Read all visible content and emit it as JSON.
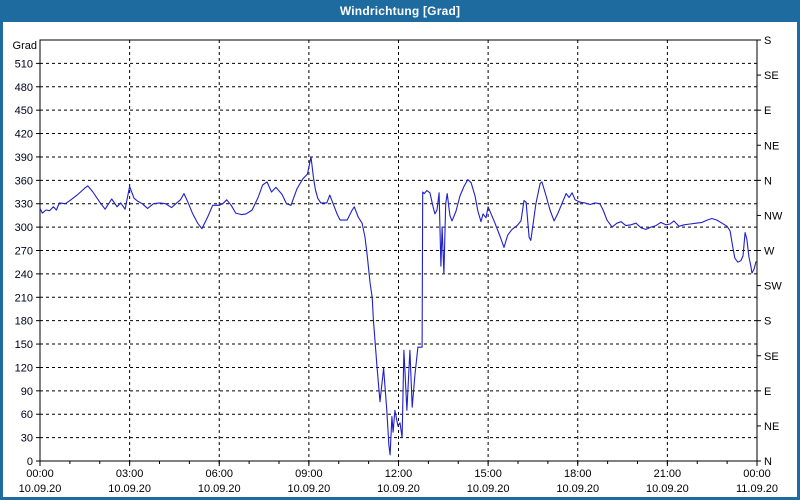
{
  "window": {
    "title": "Windrichtung [Grad]",
    "titlebar_color": "#1e6ba0",
    "frame_color": "#1e6ba0",
    "background": "#ffffff"
  },
  "chart_data": {
    "type": "line",
    "title": "Windrichtung [Grad]",
    "unit_label": "Grad",
    "line_color": "#2020c8",
    "grid": {
      "show": true,
      "color": "#000000",
      "dash": "3,3"
    },
    "x_axis": {
      "range_hours": [
        0,
        24
      ],
      "major_tick_hours": 3,
      "minor_tick_hours": 1,
      "ticks": [
        {
          "hour": 0,
          "time": "00:00",
          "date": "10.09.20"
        },
        {
          "hour": 3,
          "time": "03:00",
          "date": "10.09.20"
        },
        {
          "hour": 6,
          "time": "06:00",
          "date": "10.09.20"
        },
        {
          "hour": 9,
          "time": "09:00",
          "date": "10.09.20"
        },
        {
          "hour": 12,
          "time": "12:00",
          "date": "10.09.20"
        },
        {
          "hour": 15,
          "time": "15:00",
          "date": "10.09.20"
        },
        {
          "hour": 18,
          "time": "18:00",
          "date": "10.09.20"
        },
        {
          "hour": 21,
          "time": "21:00",
          "date": "10.09.20"
        },
        {
          "hour": 24,
          "time": "00:00",
          "date": "11.09.20"
        }
      ]
    },
    "y_axis_left": {
      "label": "Grad",
      "min": 0,
      "max": 540,
      "tick_step": 30,
      "tick_labels": [
        "0",
        "30",
        "60",
        "90",
        "120",
        "150",
        "180",
        "210",
        "240",
        "270",
        "300",
        "330",
        "360",
        "390",
        "420",
        "450",
        "480",
        "510"
      ]
    },
    "y_axis_right": {
      "labels": [
        {
          "deg": 540,
          "text": "S"
        },
        {
          "deg": 495,
          "text": "SE"
        },
        {
          "deg": 450,
          "text": "E"
        },
        {
          "deg": 405,
          "text": "NE"
        },
        {
          "deg": 360,
          "text": "N"
        },
        {
          "deg": 315,
          "text": "NW"
        },
        {
          "deg": 270,
          "text": "W"
        },
        {
          "deg": 225,
          "text": "SW"
        },
        {
          "deg": 180,
          "text": "S"
        },
        {
          "deg": 135,
          "text": "SE"
        },
        {
          "deg": 90,
          "text": "E"
        },
        {
          "deg": 45,
          "text": "NE"
        },
        {
          "deg": 0,
          "text": "N"
        }
      ]
    },
    "series": [
      {
        "name": "Windrichtung",
        "points": [
          [
            0.0,
            324
          ],
          [
            0.08,
            318
          ],
          [
            0.2,
            322
          ],
          [
            0.32,
            321
          ],
          [
            0.45,
            326
          ],
          [
            0.55,
            322
          ],
          [
            0.65,
            331
          ],
          [
            0.85,
            330
          ],
          [
            1.0,
            334
          ],
          [
            1.27,
            342
          ],
          [
            1.5,
            350
          ],
          [
            1.6,
            353
          ],
          [
            1.77,
            345
          ],
          [
            2.0,
            332
          ],
          [
            2.18,
            323
          ],
          [
            2.4,
            336
          ],
          [
            2.58,
            326
          ],
          [
            2.7,
            331
          ],
          [
            2.85,
            323
          ],
          [
            3.0,
            352
          ],
          [
            3.15,
            337
          ],
          [
            3.28,
            333
          ],
          [
            3.42,
            330
          ],
          [
            3.6,
            324
          ],
          [
            3.8,
            330
          ],
          [
            4.0,
            331
          ],
          [
            4.2,
            330
          ],
          [
            4.4,
            325
          ],
          [
            4.55,
            330
          ],
          [
            4.7,
            335
          ],
          [
            4.82,
            343
          ],
          [
            4.95,
            332
          ],
          [
            5.1,
            318
          ],
          [
            5.28,
            305
          ],
          [
            5.42,
            298
          ],
          [
            5.6,
            312
          ],
          [
            5.78,
            328
          ],
          [
            6.0,
            328
          ],
          [
            6.12,
            330
          ],
          [
            6.25,
            335
          ],
          [
            6.4,
            328
          ],
          [
            6.55,
            318
          ],
          [
            6.75,
            316
          ],
          [
            6.9,
            317
          ],
          [
            7.1,
            322
          ],
          [
            7.3,
            338
          ],
          [
            7.45,
            354
          ],
          [
            7.6,
            358
          ],
          [
            7.75,
            345
          ],
          [
            7.9,
            351
          ],
          [
            8.1,
            342
          ],
          [
            8.25,
            330
          ],
          [
            8.4,
            328
          ],
          [
            8.6,
            349
          ],
          [
            8.8,
            362
          ],
          [
            8.95,
            368
          ],
          [
            9.07,
            390
          ],
          [
            9.15,
            364
          ],
          [
            9.22,
            348
          ],
          [
            9.3,
            337
          ],
          [
            9.4,
            331
          ],
          [
            9.6,
            331
          ],
          [
            9.7,
            341
          ],
          [
            9.8,
            331
          ],
          [
            9.95,
            316
          ],
          [
            10.05,
            309
          ],
          [
            10.28,
            309
          ],
          [
            10.45,
            322
          ],
          [
            10.52,
            326
          ],
          [
            10.65,
            313
          ],
          [
            10.78,
            305
          ],
          [
            10.88,
            287
          ],
          [
            10.95,
            265
          ],
          [
            11.05,
            228
          ],
          [
            11.12,
            210
          ],
          [
            11.16,
            181
          ],
          [
            11.22,
            151
          ],
          [
            11.28,
            121
          ],
          [
            11.38,
            76
          ],
          [
            11.5,
            119
          ],
          [
            11.61,
            65
          ],
          [
            11.68,
            20
          ],
          [
            11.72,
            8
          ],
          [
            11.78,
            57
          ],
          [
            11.82,
            37
          ],
          [
            11.88,
            65
          ],
          [
            11.98,
            45
          ],
          [
            12.05,
            49
          ],
          [
            12.12,
            30
          ],
          [
            12.18,
            142
          ],
          [
            12.28,
            65
          ],
          [
            12.38,
            142
          ],
          [
            12.46,
            69
          ],
          [
            12.55,
            110
          ],
          [
            12.65,
            146
          ],
          [
            12.79,
            146
          ],
          [
            12.81,
            345
          ],
          [
            12.86,
            343
          ],
          [
            12.95,
            347
          ],
          [
            13.05,
            344
          ],
          [
            13.15,
            327
          ],
          [
            13.22,
            317
          ],
          [
            13.29,
            322
          ],
          [
            13.36,
            344
          ],
          [
            13.42,
            250
          ],
          [
            13.46,
            300
          ],
          [
            13.52,
            240
          ],
          [
            13.58,
            330
          ],
          [
            13.63,
            343
          ],
          [
            13.72,
            315
          ],
          [
            13.79,
            308
          ],
          [
            13.92,
            320
          ],
          [
            14.06,
            340
          ],
          [
            14.19,
            352
          ],
          [
            14.32,
            361
          ],
          [
            14.43,
            357
          ],
          [
            14.56,
            340
          ],
          [
            14.66,
            320
          ],
          [
            14.76,
            307
          ],
          [
            14.83,
            317
          ],
          [
            14.93,
            312
          ],
          [
            15.0,
            326
          ],
          [
            15.23,
            305
          ],
          [
            15.4,
            288
          ],
          [
            15.53,
            274
          ],
          [
            15.66,
            290
          ],
          [
            15.8,
            297
          ],
          [
            15.97,
            302
          ],
          [
            16.1,
            308
          ],
          [
            16.2,
            334
          ],
          [
            16.27,
            332
          ],
          [
            16.37,
            287
          ],
          [
            16.43,
            283
          ],
          [
            16.6,
            330
          ],
          [
            16.74,
            356
          ],
          [
            16.8,
            358
          ],
          [
            16.94,
            340
          ],
          [
            17.07,
            322
          ],
          [
            17.21,
            308
          ],
          [
            17.34,
            318
          ],
          [
            17.47,
            330
          ],
          [
            17.61,
            343
          ],
          [
            17.71,
            338
          ],
          [
            17.81,
            344
          ],
          [
            17.91,
            335
          ],
          [
            18.08,
            332
          ],
          [
            18.24,
            331
          ],
          [
            18.41,
            329
          ],
          [
            18.58,
            331
          ],
          [
            18.74,
            330
          ],
          [
            18.85,
            322
          ],
          [
            18.98,
            309
          ],
          [
            19.15,
            300
          ],
          [
            19.31,
            305
          ],
          [
            19.45,
            307
          ],
          [
            19.61,
            302
          ],
          [
            19.78,
            303
          ],
          [
            19.95,
            305
          ],
          [
            20.12,
            299
          ],
          [
            20.28,
            297
          ],
          [
            20.45,
            300
          ],
          [
            20.62,
            302
          ],
          [
            20.78,
            306
          ],
          [
            20.95,
            303
          ],
          [
            21.09,
            304
          ],
          [
            21.22,
            308
          ],
          [
            21.39,
            301
          ],
          [
            21.56,
            303
          ],
          [
            21.76,
            304
          ],
          [
            21.96,
            305
          ],
          [
            22.16,
            306
          ],
          [
            22.33,
            309
          ],
          [
            22.49,
            311
          ],
          [
            22.66,
            309
          ],
          [
            22.83,
            305
          ],
          [
            23.0,
            301
          ],
          [
            23.1,
            295
          ],
          [
            23.2,
            272
          ],
          [
            23.26,
            260
          ],
          [
            23.36,
            255
          ],
          [
            23.46,
            257
          ],
          [
            23.53,
            263
          ],
          [
            23.6,
            293
          ],
          [
            23.66,
            285
          ],
          [
            23.73,
            262
          ],
          [
            23.8,
            249
          ],
          [
            23.83,
            241
          ],
          [
            23.9,
            246
          ],
          [
            23.97,
            256
          ]
        ]
      }
    ]
  }
}
